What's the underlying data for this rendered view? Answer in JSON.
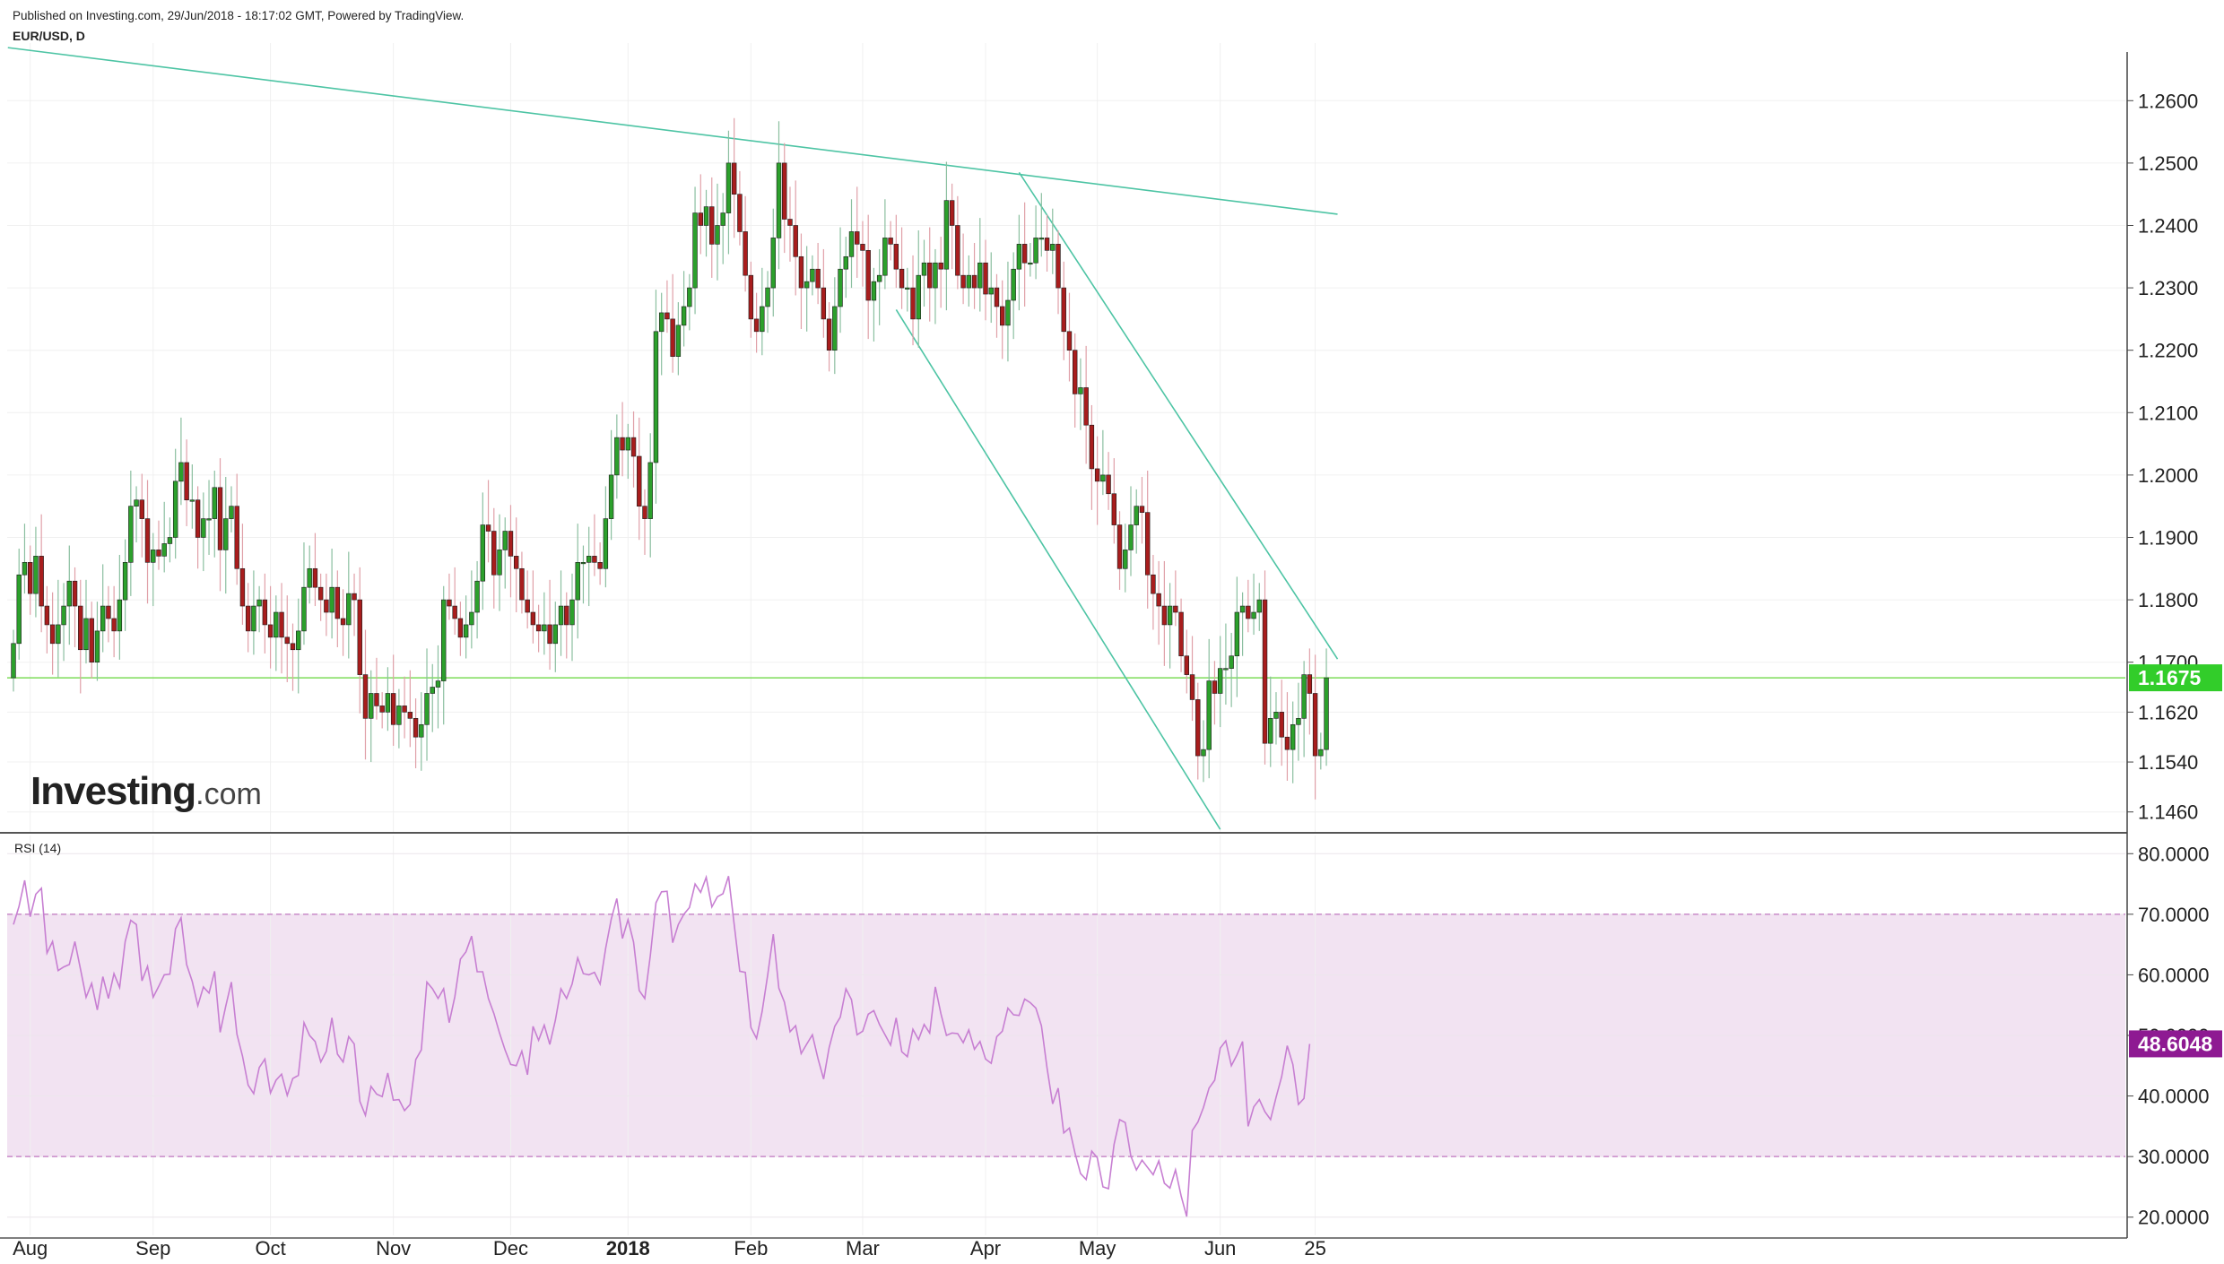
{
  "header": {
    "published": "Published on Investing.com, 29/Jun/2018 - 18:17:02 GMT, Powered by TradingView.",
    "symbol": "EUR/USD, D"
  },
  "logo": {
    "bold": "Investing",
    "suffix": ".com"
  },
  "rsi_label": "RSI (14)",
  "colors": {
    "up": "#2ca02c",
    "down": "#a81d1d",
    "trend": "#4dc4a4",
    "price_line": "#7ddc5a",
    "badge_green": "#32cd2a",
    "rsi_line": "#c77fd2",
    "rsi_band": "#f2e3f2",
    "rsi_badge": "#8e1a92"
  },
  "chart_data": [
    {
      "type": "candlestick",
      "title": "EUR/USD, D",
      "ylim": [
        1.1428,
        1.2678
      ],
      "yticks": [
        "1.2600",
        "1.2500",
        "1.2400",
        "1.2300",
        "1.2200",
        "1.2100",
        "1.2000",
        "1.1900",
        "1.1800",
        "1.1700",
        "1.1620",
        "1.1540",
        "1.1460"
      ],
      "xlabels": [
        {
          "label": "Aug",
          "index": 3
        },
        {
          "label": "Sep",
          "index": 25
        },
        {
          "label": "Oct",
          "index": 46
        },
        {
          "label": "Nov",
          "index": 68
        },
        {
          "label": "Dec",
          "index": 89
        },
        {
          "label": "2018",
          "index": 110,
          "bold": true
        },
        {
          "label": "Feb",
          "index": 132
        },
        {
          "label": "Mar",
          "index": 152
        },
        {
          "label": "Apr",
          "index": 174
        },
        {
          "label": "May",
          "index": 194
        },
        {
          "label": "Jun",
          "index": 216
        },
        {
          "label": "25",
          "index": 233
        }
      ],
      "last_price": "1.1675",
      "last_value": 1.1675,
      "trendlines": [
        {
          "start": [
            -1,
            1.2685
          ],
          "end": [
            237,
            1.2418
          ]
        },
        {
          "start": [
            180,
            1.2485
          ],
          "end": [
            237,
            1.1705
          ]
        },
        {
          "start": [
            158,
            1.2265
          ],
          "end": [
            216,
            1.1432
          ]
        }
      ],
      "first_close": 1.1675,
      "closes": [
        1.173,
        1.184,
        1.186,
        1.181,
        1.187,
        1.179,
        1.176,
        1.173,
        1.176,
        1.179,
        1.183,
        1.179,
        1.172,
        1.177,
        1.17,
        1.175,
        1.179,
        1.177,
        1.175,
        1.18,
        1.186,
        1.195,
        1.196,
        1.193,
        1.186,
        1.188,
        1.187,
        1.189,
        1.19,
        1.199,
        1.202,
        1.196,
        1.196,
        1.19,
        1.193,
        1.193,
        1.198,
        1.188,
        1.193,
        1.195,
        1.185,
        1.179,
        1.175,
        1.179,
        1.18,
        1.176,
        1.174,
        1.178,
        1.174,
        1.173,
        1.172,
        1.175,
        1.182,
        1.185,
        1.182,
        1.18,
        1.178,
        1.182,
        1.177,
        1.176,
        1.181,
        1.18,
        1.168,
        1.161,
        1.165,
        1.163,
        1.162,
        1.165,
        1.16,
        1.163,
        1.162,
        1.161,
        1.158,
        1.16,
        1.165,
        1.166,
        1.167,
        1.18,
        1.179,
        1.177,
        1.174,
        1.176,
        1.178,
        1.183,
        1.192,
        1.191,
        1.184,
        1.188,
        1.191,
        1.187,
        1.185,
        1.18,
        1.178,
        1.176,
        1.175,
        1.176,
        1.173,
        1.176,
        1.179,
        1.176,
        1.18,
        1.186,
        1.186,
        1.187,
        1.186,
        1.185,
        1.193,
        1.2,
        1.206,
        1.204,
        1.206,
        1.203,
        1.195,
        1.193,
        1.202,
        1.223,
        1.226,
        1.225,
        1.219,
        1.224,
        1.227,
        1.23,
        1.242,
        1.24,
        1.243,
        1.237,
        1.24,
        1.242,
        1.25,
        1.245,
        1.239,
        1.232,
        1.225,
        1.223,
        1.227,
        1.23,
        1.238,
        1.25,
        1.241,
        1.24,
        1.235,
        1.23,
        1.231,
        1.233,
        1.23,
        1.225,
        1.22,
        1.227,
        1.233,
        1.235,
        1.239,
        1.237,
        1.236,
        1.228,
        1.231,
        1.232,
        1.238,
        1.237,
        1.233,
        1.23,
        1.23,
        1.225,
        1.232,
        1.234,
        1.23,
        1.234,
        1.233,
        1.244,
        1.24,
        1.232,
        1.23,
        1.232,
        1.23,
        1.234,
        1.229,
        1.23,
        1.227,
        1.224,
        1.228,
        1.233,
        1.237,
        1.234,
        1.234,
        1.238,
        1.238,
        1.236,
        1.237,
        1.23,
        1.223,
        1.22,
        1.213,
        1.214,
        1.208,
        1.201,
        1.199,
        1.2,
        1.197,
        1.192,
        1.185,
        1.188,
        1.192,
        1.195,
        1.194,
        1.184,
        1.181,
        1.179,
        1.176,
        1.179,
        1.178,
        1.171,
        1.168,
        1.164,
        1.155,
        1.156,
        1.167,
        1.165,
        1.169,
        1.169,
        1.171,
        1.178,
        1.179,
        1.177,
        1.178,
        1.18,
        1.157,
        1.161,
        1.162,
        1.158,
        1.156,
        1.16,
        1.161,
        1.168,
        1.165,
        1.155,
        1.156,
        1.1675
      ]
    },
    {
      "type": "line",
      "title": "RSI (14)",
      "ylim": [
        17,
        83
      ],
      "yticks": [
        "80.0000",
        "70.0000",
        "60.0000",
        "50.0000",
        "40.0000",
        "30.0000",
        "20.0000"
      ],
      "band": [
        30,
        70
      ],
      "last_value": "48.6048",
      "rsi": [
        68.3,
        71.3,
        75.6,
        69.6,
        73.3,
        74.3,
        63.6,
        65.5,
        60.7,
        61.3,
        61.7,
        65.5,
        60.9,
        56.3,
        58.6,
        54.2,
        59.7,
        56.1,
        60.2,
        57.9,
        65.5,
        69.0,
        68.3,
        59.0,
        61.4,
        56.3,
        58.1,
        60.0,
        60.1,
        67.6,
        69.4,
        61.7,
        58.9,
        54.9,
        58.0,
        57.0,
        60.6,
        50.5,
        54.8,
        58.8,
        50.2,
        46.6,
        41.8,
        40.4,
        44.7,
        46.1,
        40.5,
        42.6,
        43.6,
        40.1,
        42.9,
        43.4,
        52.1,
        50.0,
        49.0,
        45.6,
        47.4,
        52.9,
        46.9,
        45.6,
        49.8,
        48.6,
        39.1,
        36.8,
        41.6,
        40.3,
        39.9,
        43.8,
        39.3,
        39.4,
        37.6,
        38.6,
        46.0,
        47.6,
        58.8,
        57.7,
        56.1,
        57.7,
        52.1,
        56.4,
        62.6,
        63.8,
        66.4,
        60.5,
        60.5,
        56.1,
        53.6,
        50.4,
        47.6,
        45.2,
        45.0,
        47.4,
        43.5,
        51.5,
        49.2,
        51.7,
        48.5,
        52.5,
        57.7,
        56.1,
        58.5,
        62.8,
        60.2,
        60.0,
        60.4,
        58.5,
        64.4,
        69.2,
        72.6,
        66.0,
        69.1,
        65.4,
        57.4,
        56.1,
        63.2,
        71.9,
        73.7,
        73.8,
        65.3,
        68.3,
        70.0,
        71.1,
        75.0,
        73.6,
        76.1,
        71.2,
        72.9,
        73.4,
        76.3,
        68.3,
        60.6,
        60.4,
        51.3,
        49.5,
        53.9,
        60.0,
        66.7,
        57.8,
        55.5,
        50.6,
        51.6,
        47.0,
        48.6,
        50.1,
        46.2,
        42.8,
        48.0,
        51.5,
        53.0,
        57.7,
        55.9,
        50.1,
        50.7,
        53.5,
        54.1,
        51.8,
        50.1,
        48.4,
        52.9,
        47.3,
        46.5,
        51.0,
        49.3,
        51.8,
        50.4,
        58.0,
        53.6,
        50.0,
        50.4,
        50.3,
        48.8,
        50.9,
        47.7,
        49.0,
        46.1,
        45.4,
        49.8,
        50.7,
        54.5,
        53.4,
        53.3,
        56.0,
        55.4,
        54.5,
        51.6,
        44.6,
        38.7,
        41.3,
        33.9,
        34.7,
        30.6,
        27.2,
        26.2,
        30.9,
        29.8,
        25.0,
        24.7,
        32.0,
        36.1,
        35.6,
        30.1,
        27.8,
        29.4,
        28.2,
        27.0,
        29.3,
        25.6,
        24.8,
        27.8,
        23.5,
        20.1,
        34.3,
        35.7,
        38.1,
        41.3,
        42.6,
        47.9,
        49.1,
        45.0,
        46.8,
        49.0,
        35.0,
        38.2,
        39.4,
        37.4,
        36.1,
        39.8,
        43.2,
        48.3,
        45.2,
        38.6,
        39.6,
        48.6
      ]
    }
  ]
}
